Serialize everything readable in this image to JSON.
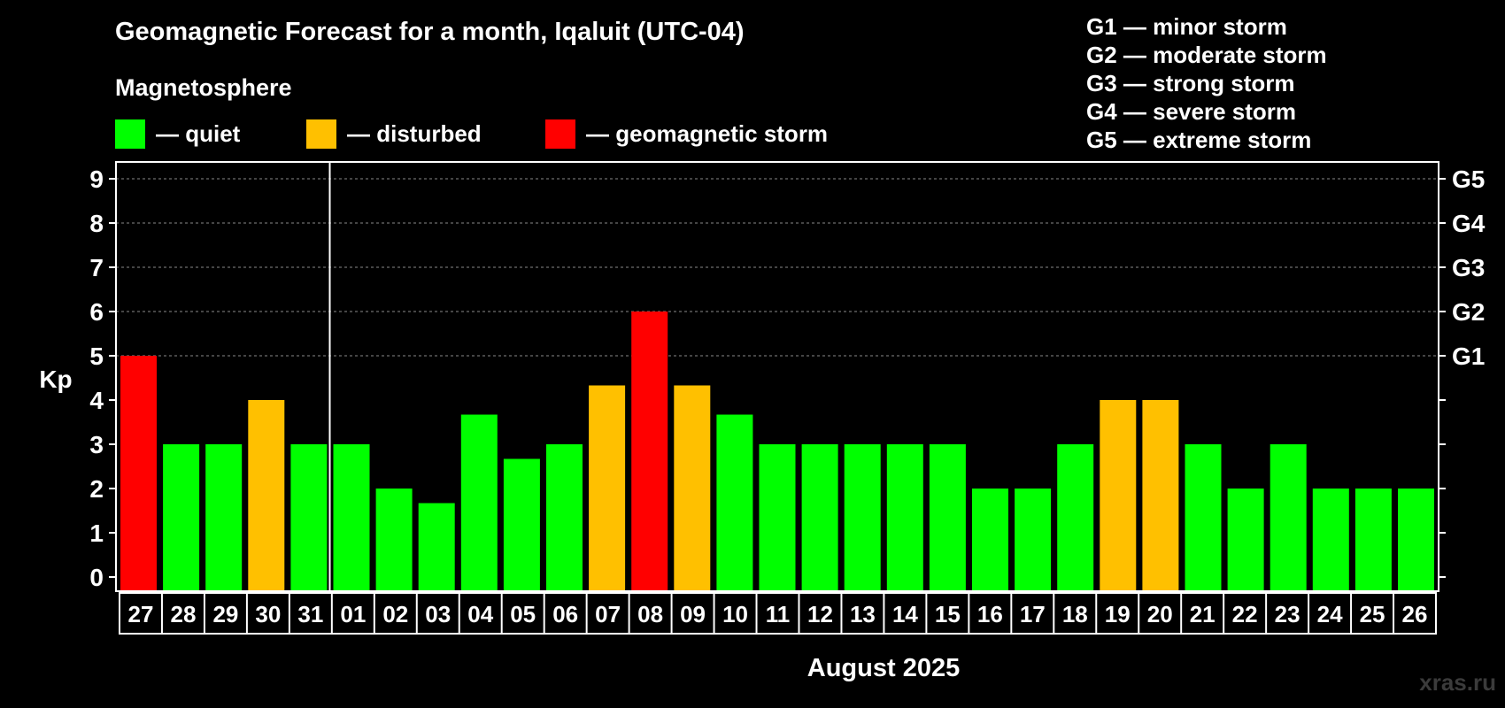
{
  "title": "Geomagnetic Forecast for a month, Iqaluit (UTC-04)",
  "magnetosphere": {
    "label": "Magnetosphere",
    "legend": [
      {
        "label": "— quiet",
        "color": "#00ff00"
      },
      {
        "label": "— disturbed",
        "color": "#ffc000"
      },
      {
        "label": "— geomagnetic storm",
        "color": "#ff0000"
      }
    ]
  },
  "storm_scale": [
    "G1 — minor storm",
    "G2 — moderate storm",
    "G3 — strong storm",
    "G4 — severe storm",
    "G5 — extreme storm"
  ],
  "watermark": "xras.ru",
  "chart_data": {
    "type": "bar",
    "title": "Geomagnetic Forecast for a month, Iqaluit (UTC-04)",
    "ylabel": "Kp",
    "xlabel": "August 2025",
    "ylim": [
      0,
      9
    ],
    "yticks": [
      "0",
      "1",
      "2",
      "3",
      "4",
      "5",
      "6",
      "7",
      "8",
      "9"
    ],
    "grid": true,
    "right_axis": [
      {
        "value": 5,
        "label": "G1"
      },
      {
        "value": 6,
        "label": "G2"
      },
      {
        "value": 7,
        "label": "G3"
      },
      {
        "value": 8,
        "label": "G4"
      },
      {
        "value": 9,
        "label": "G5"
      }
    ],
    "month_divider_after": "31",
    "categories": [
      "27",
      "28",
      "29",
      "30",
      "31",
      "01",
      "02",
      "03",
      "04",
      "05",
      "06",
      "07",
      "08",
      "09",
      "10",
      "11",
      "12",
      "13",
      "14",
      "15",
      "16",
      "17",
      "18",
      "19",
      "20",
      "21",
      "22",
      "23",
      "24",
      "25",
      "26"
    ],
    "values": [
      5,
      3,
      3,
      4,
      3,
      3,
      2,
      1.67,
      3.67,
      2.67,
      3,
      4.33,
      6,
      4.33,
      3.67,
      3,
      3,
      3,
      3,
      3,
      2,
      2,
      3,
      4,
      4,
      3,
      2,
      3,
      2,
      2,
      2
    ],
    "status": [
      "storm",
      "quiet",
      "quiet",
      "disturbed",
      "quiet",
      "quiet",
      "quiet",
      "quiet",
      "quiet",
      "quiet",
      "quiet",
      "disturbed",
      "storm",
      "disturbed",
      "quiet",
      "quiet",
      "quiet",
      "quiet",
      "quiet",
      "quiet",
      "quiet",
      "quiet",
      "quiet",
      "disturbed",
      "disturbed",
      "quiet",
      "quiet",
      "quiet",
      "quiet",
      "quiet",
      "quiet"
    ],
    "colors": {
      "quiet": "#00ff00",
      "disturbed": "#ffc000",
      "storm": "#ff0000",
      "grid": "#8a8a8a",
      "frame": "#ffffff"
    }
  }
}
